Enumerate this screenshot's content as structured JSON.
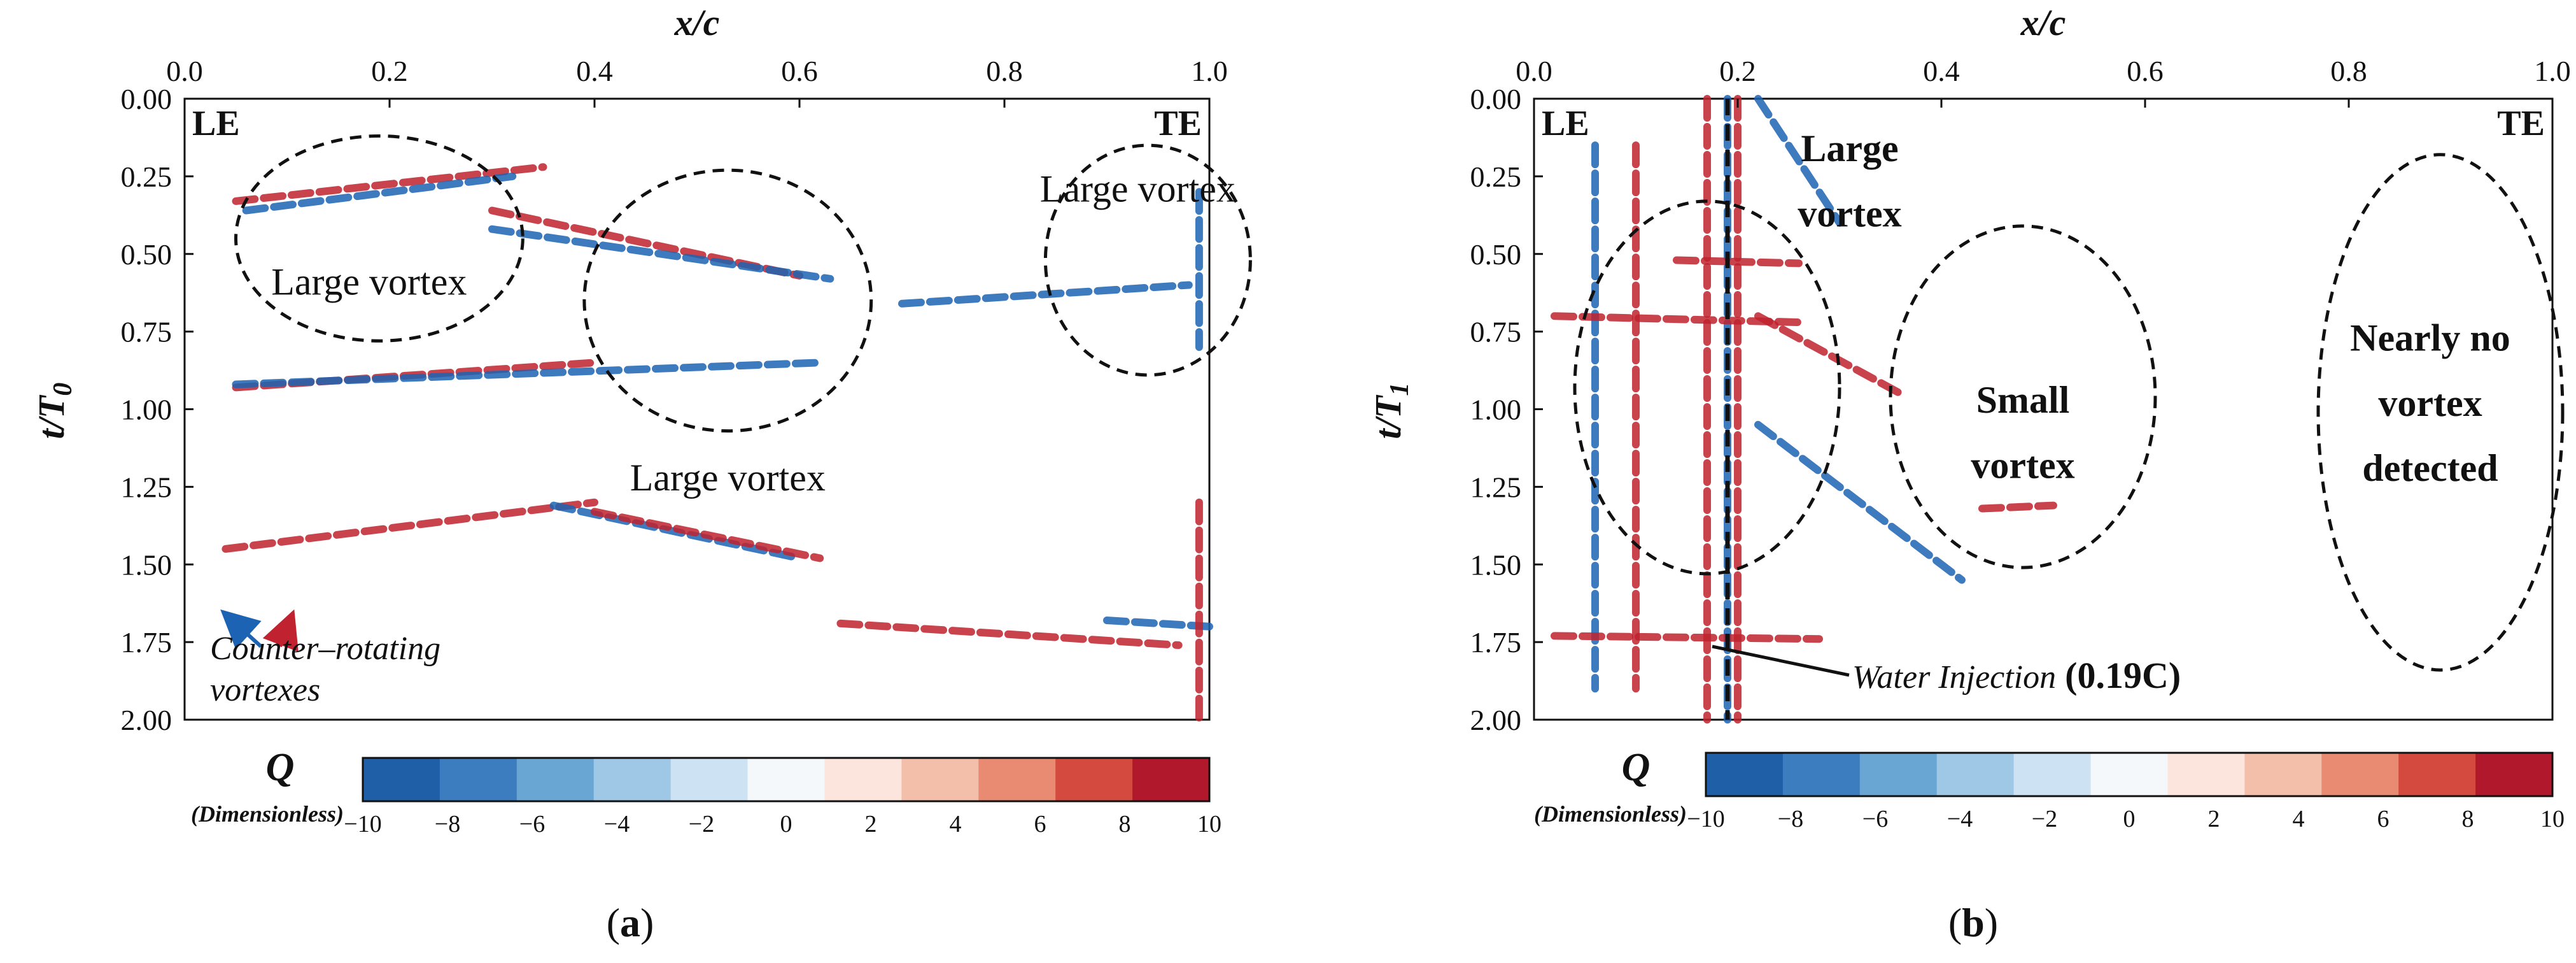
{
  "chart_data": [
    {
      "type": "heatmap",
      "panel": "(a)",
      "panel_letter": "a",
      "xlabel": "x/c",
      "ylabel_base": "t/T",
      "ylabel_sub": "0",
      "xlim": [
        0.0,
        1.0
      ],
      "ylim": [
        0.0,
        2.0
      ],
      "x_ticks": [
        "0.0",
        "0.2",
        "0.4",
        "0.6",
        "0.8",
        "1.0"
      ],
      "y_ticks": [
        "0.00",
        "0.25",
        "0.50",
        "0.75",
        "1.00",
        "1.25",
        "1.50",
        "1.75",
        "2.00"
      ],
      "corner_labels": {
        "left": "LE",
        "right": "TE"
      },
      "annotations": [
        {
          "text": "Large vortex",
          "x": 0.18,
          "y": 0.59
        },
        {
          "text": "Large vortex",
          "x": 0.93,
          "y": 0.29
        },
        {
          "text": "Large vortex",
          "x": 0.53,
          "y": 1.22
        }
      ],
      "arrow_label_line1": "Counter–rotating",
      "arrow_label_line2": "vortexes",
      "regions": [
        {
          "name": "leading-vortex",
          "cx": 0.19,
          "cy": 0.45,
          "rx": 0.14,
          "ry": 0.33
        },
        {
          "name": "mid-vortex",
          "cx": 0.53,
          "cy": 0.65,
          "rx": 0.14,
          "ry": 0.42
        },
        {
          "name": "trailing-vortex",
          "cx": 0.94,
          "cy": 0.52,
          "rx": 0.1,
          "ry": 0.37
        }
      ],
      "vortex_streaks": [
        {
          "x1": 0.05,
          "y1": 0.33,
          "x2": 0.35,
          "y2": 0.22,
          "sign": 1
        },
        {
          "x1": 0.06,
          "y1": 0.36,
          "x2": 0.32,
          "y2": 0.25,
          "sign": -1
        },
        {
          "x1": 0.3,
          "y1": 0.36,
          "x2": 0.6,
          "y2": 0.57,
          "sign": 1
        },
        {
          "x1": 0.3,
          "y1": 0.42,
          "x2": 0.63,
          "y2": 0.58,
          "sign": -1
        },
        {
          "x1": 0.05,
          "y1": 0.93,
          "x2": 0.4,
          "y2": 0.85,
          "sign": 1
        },
        {
          "x1": 0.05,
          "y1": 0.92,
          "x2": 0.62,
          "y2": 0.85,
          "sign": -1
        },
        {
          "x1": 0.04,
          "y1": 1.45,
          "x2": 0.4,
          "y2": 1.3,
          "sign": 1
        },
        {
          "x1": 0.36,
          "y1": 1.31,
          "x2": 0.6,
          "y2": 1.48,
          "sign": -1
        },
        {
          "x1": 0.4,
          "y1": 1.33,
          "x2": 0.62,
          "y2": 1.48,
          "sign": 1
        },
        {
          "x1": 0.7,
          "y1": 0.66,
          "x2": 0.98,
          "y2": 0.6,
          "sign": -1
        },
        {
          "x1": 0.64,
          "y1": 1.69,
          "x2": 0.97,
          "y2": 1.76,
          "sign": 1
        },
        {
          "x1": 0.9,
          "y1": 1.68,
          "x2": 1.0,
          "y2": 1.7,
          "sign": -1
        },
        {
          "x1": 0.99,
          "y1": 0.3,
          "x2": 0.99,
          "y2": 0.8,
          "sign": -1
        },
        {
          "x1": 0.99,
          "y1": 1.3,
          "x2": 0.99,
          "y2": 2.0,
          "sign": 1
        }
      ],
      "colorbar": {
        "label": "Q",
        "sublabel": "(Dimensionless)",
        "min": -10,
        "max": 10,
        "ticks": [
          "−10",
          "−8",
          "−6",
          "−4",
          "−2",
          "0",
          "2",
          "4",
          "6",
          "8",
          "10"
        ]
      }
    },
    {
      "type": "heatmap",
      "panel": "(b)",
      "panel_letter": "b",
      "xlabel": "x/c",
      "ylabel_base": "t/T",
      "ylabel_sub": "1",
      "xlim": [
        0.0,
        1.0
      ],
      "ylim": [
        0.0,
        2.0
      ],
      "x_ticks": [
        "0.0",
        "0.2",
        "0.4",
        "0.6",
        "0.8",
        "1.0"
      ],
      "y_ticks": [
        "0.00",
        "0.25",
        "0.50",
        "0.75",
        "1.00",
        "1.25",
        "1.50",
        "1.75",
        "2.00"
      ],
      "corner_labels": {
        "left": "LE",
        "right": "TE"
      },
      "annotations": [
        {
          "text": "Large",
          "x": 0.31,
          "y": 0.16
        },
        {
          "text": "vortex",
          "x": 0.31,
          "y": 0.37
        },
        {
          "text": "Small",
          "x": 0.48,
          "y": 0.97
        },
        {
          "text": "vortex",
          "x": 0.48,
          "y": 1.18
        },
        {
          "text": "Nearly no",
          "x": 0.88,
          "y": 0.77
        },
        {
          "text": "vortex",
          "x": 0.88,
          "y": 0.98
        },
        {
          "text": "detected",
          "x": 0.88,
          "y": 1.19
        }
      ],
      "injection_label": "Water Injection",
      "injection_value": "(0.19C)",
      "injection_x": 0.19,
      "regions": [
        {
          "name": "injection-vortex",
          "cx": 0.17,
          "cy": 0.93,
          "rx": 0.13,
          "ry": 0.6
        },
        {
          "name": "small-vortex",
          "cx": 0.48,
          "cy": 0.96,
          "rx": 0.13,
          "ry": 0.55
        },
        {
          "name": "far-region",
          "cx": 0.89,
          "cy": 1.01,
          "rx": 0.12,
          "ry": 0.83
        }
      ],
      "vortex_streaks": [
        {
          "x1": 0.17,
          "y1": 0.0,
          "x2": 0.17,
          "y2": 2.0,
          "sign": 1
        },
        {
          "x1": 0.2,
          "y1": 0.0,
          "x2": 0.2,
          "y2": 2.0,
          "sign": 1
        },
        {
          "x1": 0.19,
          "y1": 0.0,
          "x2": 0.19,
          "y2": 2.0,
          "sign": -1
        },
        {
          "x1": 0.1,
          "y1": 0.15,
          "x2": 0.1,
          "y2": 1.9,
          "sign": 1
        },
        {
          "x1": 0.06,
          "y1": 0.15,
          "x2": 0.06,
          "y2": 1.9,
          "sign": -1
        },
        {
          "x1": 0.02,
          "y1": 0.7,
          "x2": 0.26,
          "y2": 0.72,
          "sign": 1
        },
        {
          "x1": 0.02,
          "y1": 1.73,
          "x2": 0.28,
          "y2": 1.74,
          "sign": 1
        },
        {
          "x1": 0.14,
          "y1": 0.52,
          "x2": 0.26,
          "y2": 0.53,
          "sign": 1
        },
        {
          "x1": 0.22,
          "y1": 0.0,
          "x2": 0.3,
          "y2": 0.4,
          "sign": -1
        },
        {
          "x1": 0.44,
          "y1": 1.32,
          "x2": 0.51,
          "y2": 1.31,
          "sign": 1
        },
        {
          "x1": 0.22,
          "y1": 0.7,
          "x2": 0.36,
          "y2": 0.95,
          "sign": 1
        },
        {
          "x1": 0.22,
          "y1": 1.05,
          "x2": 0.42,
          "y2": 1.55,
          "sign": -1
        }
      ],
      "colorbar": {
        "label": "Q",
        "sublabel": "(Dimensionless)",
        "min": -10,
        "max": 10,
        "ticks": [
          "−10",
          "−8",
          "−6",
          "−4",
          "−2",
          "0",
          "2",
          "4",
          "6",
          "8",
          "10"
        ]
      }
    }
  ],
  "colors": {
    "scale": [
      "#1f5fa8",
      "#3b7dbf",
      "#6aa6d4",
      "#9ec8e6",
      "#cde2f2",
      "#f4f8fb",
      "#fbe5dc",
      "#f4bfaa",
      "#e88b72",
      "#d44a3e",
      "#b2182b"
    ],
    "positive": "#c0232f",
    "negative": "#1d63b3"
  }
}
